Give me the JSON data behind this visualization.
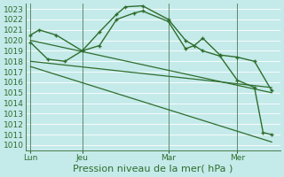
{
  "xlabel": "Pression niveau de la mer( hPa )",
  "bg_color": "#c5eaea",
  "plot_bg_color": "#c5eaea",
  "grid_color": "#9fcfcf",
  "line_color": "#2d6e2d",
  "ylim": [
    1009.5,
    1023.5
  ],
  "yticks": [
    1010,
    1011,
    1012,
    1013,
    1014,
    1015,
    1016,
    1017,
    1018,
    1019,
    1020,
    1021,
    1022,
    1023
  ],
  "xtick_labels": [
    "Lun",
    "Jeu",
    "Mar",
    "Mer"
  ],
  "xtick_positions": [
    0,
    3,
    8,
    12
  ],
  "x_total": 14.5,
  "xlim": [
    -0.3,
    14.5
  ],
  "series": [
    {
      "x": [
        0,
        0.5,
        1.5,
        3,
        4,
        5,
        6,
        6.5,
        8,
        9,
        9.5,
        10,
        11,
        12,
        13,
        14
      ],
      "y": [
        1020.5,
        1021.0,
        1020.5,
        1019.0,
        1019.5,
        1022.0,
        1022.6,
        1022.8,
        1021.8,
        1019.2,
        1019.5,
        1020.2,
        1018.6,
        1018.4,
        1018.0,
        1015.2
      ],
      "marker": true,
      "linewidth": 1.0
    },
    {
      "x": [
        0,
        1,
        2,
        3,
        4,
        5,
        5.5,
        6.5,
        8,
        9,
        10,
        11,
        12,
        13,
        13.5,
        14
      ],
      "y": [
        1019.8,
        1018.2,
        1018.0,
        1019.0,
        1020.8,
        1022.5,
        1023.2,
        1023.3,
        1022.0,
        1020.0,
        1019.0,
        1018.5,
        1016.2,
        1015.5,
        1011.2,
        1011.0
      ],
      "marker": true,
      "linewidth": 1.0
    },
    {
      "x": [
        0,
        14
      ],
      "y": [
        1020.0,
        1015.0
      ],
      "marker": false,
      "linewidth": 0.9
    },
    {
      "x": [
        0,
        14
      ],
      "y": [
        1018.0,
        1015.5
      ],
      "marker": false,
      "linewidth": 0.9
    },
    {
      "x": [
        0,
        14
      ],
      "y": [
        1017.5,
        1010.3
      ],
      "marker": false,
      "linewidth": 0.9
    }
  ],
  "vlines": [
    0,
    3,
    8,
    12
  ],
  "xlabel_fontsize": 8,
  "tick_fontsize": 6.5
}
